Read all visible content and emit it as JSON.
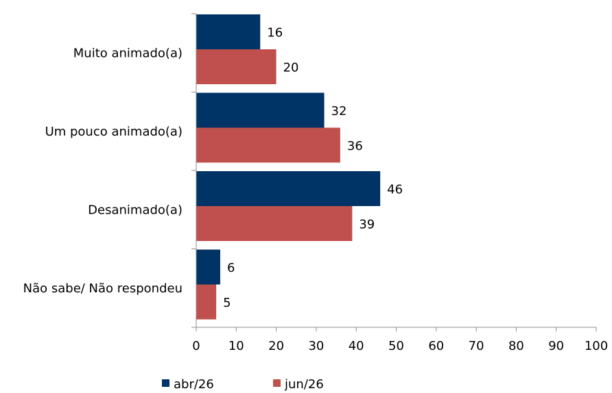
{
  "chart_data": {
    "type": "bar",
    "orientation": "horizontal",
    "categories": [
      "Muito animado(a)",
      "Um pouco animado(a)",
      "Desanimado(a)",
      "Não sabe/ Não respondeu"
    ],
    "series": [
      {
        "name": "abr/26",
        "values": [
          16,
          32,
          46,
          6
        ],
        "color": "#003366"
      },
      {
        "name": "jun/26",
        "values": [
          20,
          36,
          39,
          5
        ],
        "color": "#C0504D"
      }
    ],
    "xlim": [
      0,
      100
    ],
    "xticks": [
      0,
      10,
      20,
      30,
      40,
      50,
      60,
      70,
      80,
      90,
      100
    ],
    "grid": false,
    "legend_position": "bottom-left"
  }
}
